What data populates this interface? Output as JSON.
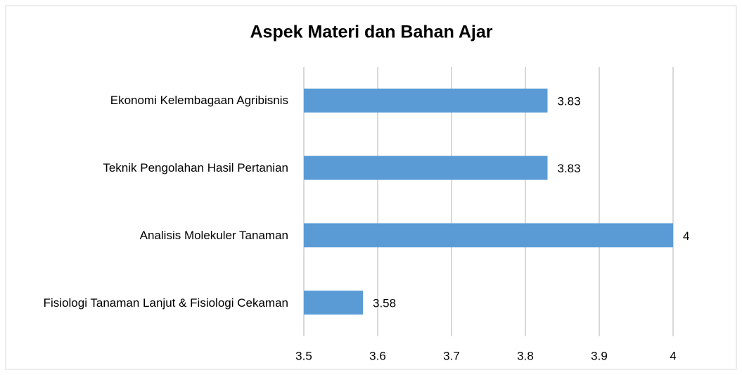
{
  "chart_data": {
    "type": "bar",
    "orientation": "horizontal",
    "title": "Aspek Materi dan Bahan Ajar",
    "categories": [
      "Ekonomi Kelembagaan Agribisnis",
      "Teknik Pengolahan Hasil Pertanian",
      "Analisis Molekuler Tanaman",
      "Fisiologi Tanaman Lanjut & Fisiologi Cekaman"
    ],
    "values": [
      3.83,
      3.83,
      4,
      3.58
    ],
    "color": "#5b9bd5",
    "xlim": [
      3.5,
      4
    ],
    "xticks": [
      3.5,
      3.6,
      3.7,
      3.8,
      3.9,
      4
    ],
    "grid": true
  }
}
